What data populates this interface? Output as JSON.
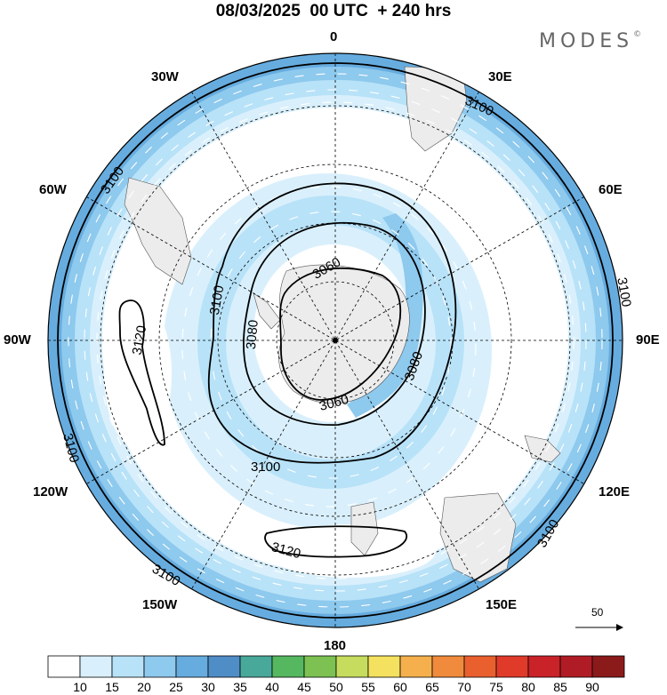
{
  "header": {
    "title": "08/03/2025  00 UTC  + 240 hrs",
    "brand": "MODES",
    "brand_mark": "©"
  },
  "map": {
    "projection": "south polar stereographic",
    "longitude_labels": {
      "top": "0",
      "30e": "30E",
      "60e": "60E",
      "90e": "90E",
      "120e": "120E",
      "150e": "150E",
      "bottom": "180",
      "150w": "150W",
      "120w": "120W",
      "90w": "90W",
      "60w": "60W",
      "30w": "30W"
    },
    "contour_labels": [
      "3100",
      "3100",
      "3100",
      "3100",
      "3100",
      "3100",
      "3100",
      "3080",
      "3080",
      "3060",
      "3060",
      "3120",
      "3120",
      "3100"
    ],
    "reference_vector_label": "50",
    "colors": {
      "land": "#ececec",
      "ocean_low": "#ffffff"
    }
  },
  "colorbar": {
    "ticks": [
      "10",
      "15",
      "20",
      "25",
      "30",
      "35",
      "40",
      "45",
      "50",
      "55",
      "60",
      "65",
      "70",
      "75",
      "80",
      "85",
      "90"
    ],
    "colors": [
      "#ffffff",
      "#d9f0fc",
      "#b8e2f8",
      "#8ec9ee",
      "#66acdf",
      "#4f8dc7",
      "#48a89a",
      "#55b760",
      "#7cc152",
      "#c6dc5e",
      "#f4e15f",
      "#f5b04d",
      "#f08a3c",
      "#e9602e",
      "#df3a2a",
      "#c92229",
      "#b01c26",
      "#8b1a1a"
    ]
  }
}
